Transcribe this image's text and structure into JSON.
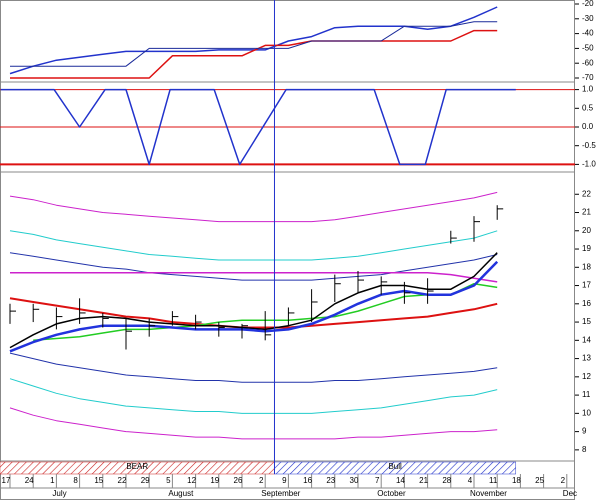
{
  "chart_data": [
    {
      "type": "line",
      "ylim": [
        -20,
        -70
      ],
      "yticks": [
        -20,
        -30,
        -40,
        -50,
        -60,
        -70
      ],
      "series": [
        {
          "color": "#2233cc",
          "line_width": 1.5,
          "values": [
            -67,
            -62,
            -58,
            -56,
            -54,
            -52,
            -52,
            -52,
            -52,
            -51,
            -51,
            -51,
            -45,
            -42,
            -36,
            -35,
            -35,
            -35,
            -37,
            -35,
            -29,
            -22,
            null,
            null,
            null
          ]
        },
        {
          "color": "#dd1111",
          "line_width": 1.5,
          "values": [
            -70,
            -70,
            -70,
            -70,
            -70,
            -70,
            -70,
            -55,
            -55,
            -55,
            -55,
            -48,
            -48,
            -45,
            -45,
            -45,
            -45,
            -45,
            -45,
            -45,
            -38,
            -38,
            null,
            null,
            null
          ]
        },
        {
          "color": "#1a2a99",
          "line_width": 1,
          "values": [
            -62,
            -62,
            -62,
            -62,
            -62,
            -62,
            -50,
            -50,
            -50,
            -50,
            -50,
            -50,
            -50,
            -45,
            -45,
            -45,
            -45,
            -35,
            -35,
            -35,
            -32,
            -32,
            null,
            null,
            null
          ]
        }
      ]
    },
    {
      "type": "line",
      "ylim": [
        1.15,
        -1.15
      ],
      "yticks": [
        {
          "value": 1,
          "label": "1.0"
        },
        {
          "value": 0.5,
          "label": "0.5"
        },
        {
          "value": 0,
          "label": "0.0"
        },
        {
          "value": -0.5,
          "label": "-0.5"
        },
        {
          "value": -1,
          "label": "-1.0"
        }
      ],
      "ref_lines": [
        1,
        0,
        -1
      ],
      "ref_color": "#dd1111",
      "series": [
        {
          "color": "#2233cc",
          "line_width": 1.5,
          "x": [
            -0.4,
            1.9,
            3.0,
            4.1,
            5.0,
            6.0,
            6.9,
            8.8,
            9.9,
            11.9,
            15.7,
            16.8,
            17.9,
            18.8,
            21.8
          ],
          "values": [
            1,
            1,
            0,
            1,
            1,
            -1,
            1,
            1,
            -1,
            1,
            1,
            -1,
            -1,
            1,
            1
          ]
        }
      ]
    },
    {
      "type": "line",
      "ylim": [
        23,
        7.5
      ],
      "yticks": [
        8,
        9,
        10,
        11,
        12,
        13,
        14,
        15,
        16,
        17,
        18,
        19,
        20,
        21,
        22
      ],
      "categories": [
        "17",
        "24",
        "1",
        "8",
        "15",
        "22",
        "29",
        "5",
        "12",
        "19",
        "26",
        "2",
        "9",
        "16",
        "23",
        "30",
        "7",
        "14",
        "21",
        "28",
        "4",
        "11",
        "18",
        "25",
        "2"
      ],
      "months": [
        {
          "name": "July",
          "at": 2
        },
        {
          "name": "August",
          "at": 7
        },
        {
          "name": "September",
          "at": 11
        },
        {
          "name": "October",
          "at": 16
        },
        {
          "name": "November",
          "at": 20
        },
        {
          "name": "Dec",
          "at": 24
        }
      ],
      "marker_x": 11.4,
      "marker_color": "#2233cc",
      "regions": [
        {
          "label": "BEAR",
          "color": "#cc2222",
          "from": -0.5,
          "to": 11.4
        },
        {
          "label": "Bull",
          "color": "#2233cc",
          "from": 11.4,
          "to": 21.8
        }
      ],
      "series": [
        {
          "color": "#cc22cc",
          "line_width": 1,
          "values": [
            21.9,
            21.7,
            21.4,
            21.2,
            21.0,
            20.9,
            20.8,
            20.7,
            20.6,
            20.5,
            20.5,
            20.5,
            20.5,
            20.5,
            20.6,
            20.8,
            21.0,
            21.2,
            21.4,
            21.6,
            21.8,
            22.1,
            null,
            null,
            null
          ]
        },
        {
          "color": "#22cccc",
          "line_width": 1,
          "values": [
            20.0,
            19.8,
            19.5,
            19.3,
            19.1,
            18.9,
            18.7,
            18.6,
            18.5,
            18.4,
            18.4,
            18.4,
            18.4,
            18.4,
            18.5,
            18.6,
            18.8,
            19.0,
            19.2,
            19.4,
            19.6,
            20.0,
            null,
            null,
            null
          ]
        },
        {
          "color": "#2233aa",
          "line_width": 1,
          "values": [
            18.8,
            18.6,
            18.4,
            18.2,
            18.0,
            17.9,
            17.7,
            17.6,
            17.5,
            17.4,
            17.3,
            17.3,
            17.3,
            17.3,
            17.4,
            17.5,
            17.6,
            17.8,
            18.0,
            18.2,
            18.4,
            18.7,
            null,
            null,
            null
          ]
        },
        {
          "color": "#cc22cc",
          "line_width": 1.5,
          "values": [
            17.7,
            17.7,
            17.7,
            17.7,
            17.7,
            17.7,
            17.7,
            17.7,
            17.7,
            17.7,
            17.7,
            17.7,
            17.7,
            17.7,
            17.7,
            17.7,
            17.7,
            17.7,
            17.7,
            17.6,
            17.4,
            17.2,
            null,
            null,
            null
          ]
        },
        {
          "color": "#2233aa",
          "line_width": 1,
          "values": [
            13.3,
            13.0,
            12.7,
            12.5,
            12.3,
            12.1,
            12.0,
            11.9,
            11.8,
            11.8,
            11.7,
            11.7,
            11.7,
            11.7,
            11.8,
            11.8,
            11.9,
            12.0,
            12.1,
            12.2,
            12.3,
            12.5,
            null,
            null,
            null
          ]
        },
        {
          "color": "#22cccc",
          "line_width": 1,
          "values": [
            11.9,
            11.5,
            11.1,
            10.8,
            10.6,
            10.4,
            10.3,
            10.2,
            10.1,
            10.1,
            10.0,
            10.0,
            10.0,
            10.0,
            10.1,
            10.2,
            10.3,
            10.5,
            10.7,
            10.9,
            11.0,
            11.3,
            null,
            null,
            null
          ]
        },
        {
          "color": "#cc22cc",
          "line_width": 1,
          "values": [
            10.3,
            9.9,
            9.6,
            9.4,
            9.2,
            9.0,
            8.9,
            8.8,
            8.7,
            8.7,
            8.6,
            8.6,
            8.6,
            8.6,
            8.6,
            8.7,
            8.7,
            8.8,
            8.9,
            9.0,
            9.0,
            9.1,
            null,
            null,
            null
          ]
        },
        {
          "color": "#dd1111",
          "line_width": 2,
          "values": [
            16.3,
            16.1,
            15.9,
            15.7,
            15.5,
            15.3,
            15.2,
            15.0,
            14.9,
            14.8,
            14.7,
            14.7,
            14.7,
            14.8,
            14.9,
            15.0,
            15.1,
            15.2,
            15.3,
            15.5,
            15.7,
            16.0,
            null,
            null,
            null
          ]
        },
        {
          "color": "#22cc22",
          "line_width": 1.5,
          "values": [
            null,
            14.0,
            14.1,
            14.2,
            14.4,
            14.6,
            14.6,
            14.7,
            14.8,
            15.0,
            15.1,
            15.1,
            15.1,
            15.2,
            15.3,
            15.6,
            16.0,
            16.4,
            16.5,
            16.5,
            17.1,
            16.9,
            null,
            null,
            null
          ]
        },
        {
          "color": "#000000",
          "line_width": 1.5,
          "values": [
            13.6,
            14.3,
            14.9,
            15.2,
            15.3,
            15.2,
            15.0,
            14.9,
            14.8,
            14.8,
            14.7,
            14.6,
            14.8,
            15.1,
            16.0,
            16.6,
            17.0,
            17.0,
            16.8,
            16.8,
            17.5,
            18.8,
            null,
            null,
            null
          ]
        },
        {
          "color": "#2233dd",
          "line_width": 2.5,
          "values": [
            13.4,
            13.9,
            14.3,
            14.6,
            14.8,
            14.8,
            14.8,
            14.7,
            14.6,
            14.6,
            14.6,
            14.5,
            14.6,
            14.9,
            15.4,
            16.0,
            16.5,
            16.7,
            16.5,
            16.5,
            17.0,
            18.3,
            null,
            null,
            null
          ]
        }
      ],
      "price": {
        "color": "#000000",
        "high": [
          16.0,
          16.0,
          15.8,
          16.3,
          15.5,
          15.2,
          15.2,
          15.6,
          15.4,
          15.0,
          14.9,
          15.6,
          15.8,
          16.8,
          17.6,
          17.8,
          17.5,
          17.2,
          17.4,
          20.0,
          20.8,
          21.4,
          null,
          null,
          null
        ],
        "low": [
          14.9,
          15.0,
          14.6,
          14.9,
          14.7,
          13.5,
          14.2,
          14.8,
          14.6,
          14.2,
          14.1,
          14.0,
          14.8,
          15.0,
          16.1,
          16.6,
          16.5,
          16.0,
          16.0,
          19.3,
          19.4,
          20.6,
          null,
          null,
          null
        ],
        "close": [
          15.6,
          15.7,
          15.3,
          15.5,
          15.2,
          14.5,
          14.8,
          15.3,
          15.0,
          14.7,
          14.8,
          14.3,
          15.5,
          16.1,
          17.1,
          17.3,
          17.2,
          16.6,
          16.7,
          19.6,
          20.5,
          21.2,
          null,
          null,
          null
        ]
      }
    }
  ]
}
